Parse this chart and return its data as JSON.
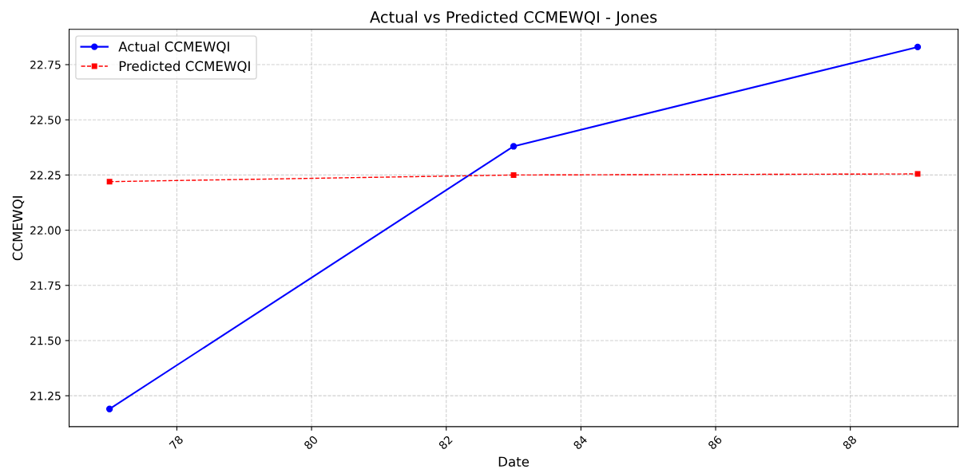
{
  "chart_data": {
    "type": "line",
    "title": "Actual vs Predicted CCMEWQI - Jones",
    "xlabel": "Date",
    "ylabel": "CCMEWQI",
    "x": [
      77,
      83,
      89
    ],
    "series": [
      {
        "name": "Actual CCMEWQI",
        "color": "#0000ff",
        "values": [
          21.19,
          22.38,
          22.83
        ],
        "marker": "circle",
        "line_style": "solid"
      },
      {
        "name": "Predicted CCMEWQI",
        "color": "#ff0000",
        "values": [
          22.22,
          22.25,
          22.255
        ],
        "marker": "square",
        "line_style": "dashed"
      }
    ],
    "xlim": [
      76.4,
      89.6
    ],
    "xticks": [
      78,
      80,
      82,
      84,
      86,
      88
    ],
    "ylim": [
      21.11,
      22.91
    ],
    "yticks": [
      21.25,
      {
        "value": 21.5,
        "label": "21.50"
      },
      21.75,
      {
        "value": 22,
        "label": "22.00"
      },
      22.25,
      {
        "value": 22.5,
        "label": "22.50"
      },
      22.75
    ],
    "grid": true,
    "legend": "top left"
  }
}
